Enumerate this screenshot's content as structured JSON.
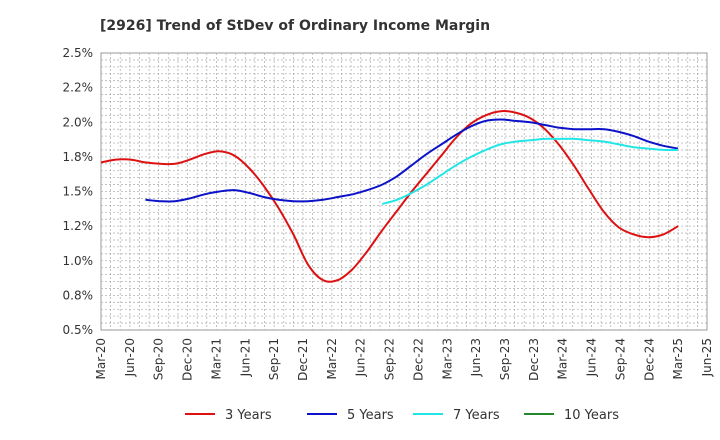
{
  "chart_data": {
    "type": "line",
    "title": "[2926]  Trend of StDev of Ordinary Income Margin",
    "xlabel": "",
    "ylabel": "",
    "x_ticks": [
      "Mar-20",
      "Jun-20",
      "Sep-20",
      "Dec-20",
      "Mar-21",
      "Jun-21",
      "Sep-21",
      "Dec-21",
      "Mar-22",
      "Jun-22",
      "Sep-22",
      "Dec-22",
      "Mar-23",
      "Jun-23",
      "Sep-23",
      "Dec-23",
      "Mar-24",
      "Jun-24",
      "Sep-24",
      "Dec-24",
      "Mar-25",
      "Jun-25"
    ],
    "y_ticks": [
      "0.5%",
      "0.8%",
      "1.0%",
      "1.2%",
      "1.5%",
      "1.8%",
      "2.0%",
      "2.2%",
      "2.5%"
    ],
    "ylim": [
      0.5,
      2.5
    ],
    "grid": true,
    "legend_position": "bottom",
    "series": [
      {
        "name": "3 Years",
        "color": "#dd1111",
        "values": [
          1.71,
          1.73,
          1.73,
          1.71,
          1.7,
          1.7,
          1.73,
          1.77,
          1.79,
          1.76,
          1.67,
          1.54,
          1.38,
          1.19,
          0.97,
          0.86,
          0.86,
          0.94,
          1.07,
          1.22,
          1.36,
          1.5,
          1.63,
          1.76,
          1.89,
          1.99,
          2.05,
          2.08,
          2.07,
          2.03,
          1.95,
          1.83,
          1.68,
          1.51,
          1.35,
          1.24,
          1.19,
          1.17,
          1.19,
          1.25
        ]
      },
      {
        "name": "5 Years",
        "color": "#0b12c8",
        "values": [
          null,
          null,
          null,
          1.44,
          1.43,
          1.43,
          1.45,
          1.48,
          1.5,
          1.51,
          1.49,
          1.46,
          1.44,
          1.43,
          1.43,
          1.44,
          1.46,
          1.48,
          1.51,
          1.55,
          1.61,
          1.69,
          1.77,
          1.84,
          1.91,
          1.97,
          2.01,
          2.02,
          2.01,
          2.0,
          1.98,
          1.96,
          1.95,
          1.95,
          1.95,
          1.93,
          1.9,
          1.86,
          1.83,
          1.81
        ]
      },
      {
        "name": "7 Years",
        "color": "#22e6e6",
        "values": [
          null,
          null,
          null,
          null,
          null,
          null,
          null,
          null,
          null,
          null,
          null,
          null,
          null,
          null,
          null,
          null,
          null,
          null,
          null,
          1.41,
          1.44,
          1.49,
          1.55,
          1.62,
          1.69,
          1.75,
          1.8,
          1.84,
          1.86,
          1.87,
          1.88,
          1.88,
          1.88,
          1.87,
          1.86,
          1.84,
          1.82,
          1.81,
          1.8,
          1.8
        ]
      },
      {
        "name": "10 Years",
        "color": "#22882b",
        "values": []
      }
    ]
  }
}
